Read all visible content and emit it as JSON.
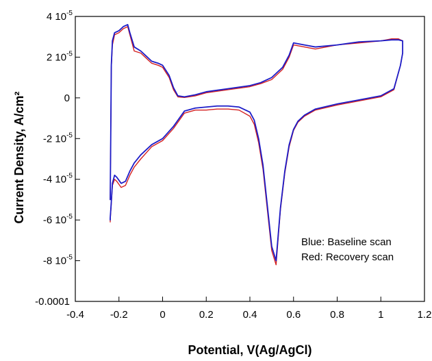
{
  "chart_data": {
    "type": "line",
    "title": "",
    "xlabel": "Potential, V(Ag/AgCl)",
    "ylabel": "Current Density, A/cm²",
    "xlim": [
      -0.4,
      1.2
    ],
    "ylim": [
      -0.0001,
      4e-05
    ],
    "grid": false,
    "x_ticks": [
      {
        "value": -0.4,
        "label": "-0.4"
      },
      {
        "value": -0.2,
        "label": "-0.2"
      },
      {
        "value": 0,
        "label": "0"
      },
      {
        "value": 0.2,
        "label": "0.2"
      },
      {
        "value": 0.4,
        "label": "0.4"
      },
      {
        "value": 0.6,
        "label": "0.6"
      },
      {
        "value": 0.8,
        "label": "0.8"
      },
      {
        "value": 1.0,
        "label": "1"
      },
      {
        "value": 1.2,
        "label": "1.2"
      }
    ],
    "y_ticks": [
      {
        "value": 4e-05,
        "label": "4 10",
        "exp": "-5"
      },
      {
        "value": 2e-05,
        "label": "2 10",
        "exp": "-5"
      },
      {
        "value": 0,
        "label": "0",
        "exp": ""
      },
      {
        "value": -2e-05,
        "label": "-2 10",
        "exp": "-5"
      },
      {
        "value": -4e-05,
        "label": "-4 10",
        "exp": "-5"
      },
      {
        "value": -6e-05,
        "label": "-6 10",
        "exp": "-5"
      },
      {
        "value": -8e-05,
        "label": "-8 10",
        "exp": "-5"
      },
      {
        "value": -0.0001,
        "label": "-0.0001",
        "exp": ""
      }
    ],
    "annotations": [
      "Blue: Baseline scan",
      "Red: Recovery scan"
    ],
    "series": [
      {
        "color": "#d42020",
        "x": [
          -0.24,
          -0.235,
          -0.23,
          -0.22,
          -0.2,
          -0.18,
          -0.16,
          -0.15,
          -0.13,
          -0.1,
          -0.08,
          -0.05,
          -0.02,
          0,
          0.03,
          0.05,
          0.07,
          0.1,
          0.15,
          0.2,
          0.3,
          0.4,
          0.45,
          0.5,
          0.55,
          0.58,
          0.6,
          0.65,
          0.7,
          0.8,
          0.9,
          1.0,
          1.05,
          1.08,
          1.1,
          1.1,
          1.09,
          1.06,
          1.0,
          0.9,
          0.8,
          0.7,
          0.65,
          0.62,
          0.6,
          0.58,
          0.56,
          0.54,
          0.52,
          0.5,
          0.48,
          0.46,
          0.44,
          0.42,
          0.4,
          0.35,
          0.3,
          0.25,
          0.2,
          0.15,
          0.1,
          0.05,
          0,
          -0.05,
          -0.1,
          -0.13,
          -0.15,
          -0.17,
          -0.19,
          -0.21,
          -0.22,
          -0.23,
          -0.235,
          -0.24,
          -0.24
        ],
        "y": [
          -5e-05,
          1.5e-05,
          2.6e-05,
          3.1e-05,
          3.2e-05,
          3.4e-05,
          3.5e-05,
          3.1e-05,
          2.3e-05,
          2.2e-05,
          2e-05,
          1.7e-05,
          1.6e-05,
          1.5e-05,
          1e-05,
          4e-06,
          5e-07,
          2e-07,
          1e-06,
          2.5e-06,
          4e-06,
          5.5e-06,
          7e-06,
          9e-06,
          1.4e-05,
          2e-05,
          2.6e-05,
          2.5e-05,
          2.4e-05,
          2.6e-05,
          2.7e-05,
          2.8e-05,
          2.9e-05,
          2.9e-05,
          2.8e-05,
          2.2e-05,
          1.6e-05,
          4e-06,
          5e-07,
          -1.5e-06,
          -3.5e-06,
          -6e-06,
          -9e-06,
          -1.2e-05,
          -1.6e-05,
          -2.4e-05,
          -3.7e-05,
          -5.5e-05,
          -8.2e-05,
          -7.5e-05,
          -5.5e-05,
          -3.5e-05,
          -2.2e-05,
          -1.3e-05,
          -9e-06,
          -6e-06,
          -5.5e-06,
          -5.5e-06,
          -6e-06,
          -6e-06,
          -7.5e-06,
          -1.5e-05,
          -2.1e-05,
          -2.4e-05,
          -3e-05,
          -3.4e-05,
          -3.8e-05,
          -4.3e-05,
          -4.4e-05,
          -4.1e-05,
          -4e-05,
          -4.3e-05,
          -5.2e-05,
          -6e-05,
          -6.1e-05
        ]
      },
      {
        "color": "#1c1cc8",
        "x": [
          -0.24,
          -0.235,
          -0.23,
          -0.22,
          -0.2,
          -0.18,
          -0.16,
          -0.15,
          -0.13,
          -0.1,
          -0.08,
          -0.05,
          -0.02,
          0,
          0.03,
          0.05,
          0.07,
          0.1,
          0.15,
          0.2,
          0.3,
          0.4,
          0.45,
          0.5,
          0.55,
          0.58,
          0.6,
          0.65,
          0.7,
          0.8,
          0.9,
          1.0,
          1.05,
          1.08,
          1.1,
          1.1,
          1.09,
          1.06,
          1.0,
          0.9,
          0.8,
          0.7,
          0.65,
          0.62,
          0.6,
          0.58,
          0.56,
          0.54,
          0.52,
          0.5,
          0.48,
          0.46,
          0.44,
          0.42,
          0.4,
          0.35,
          0.3,
          0.25,
          0.2,
          0.15,
          0.1,
          0.05,
          0,
          -0.05,
          -0.1,
          -0.13,
          -0.15,
          -0.17,
          -0.19,
          -0.21,
          -0.22,
          -0.23,
          -0.235,
          -0.24,
          -0.24
        ],
        "y": [
          -5e-05,
          1.6e-05,
          2.8e-05,
          3.2e-05,
          3.3e-05,
          3.5e-05,
          3.6e-05,
          3.2e-05,
          2.5e-05,
          2.3e-05,
          2.1e-05,
          1.8e-05,
          1.7e-05,
          1.6e-05,
          1.1e-05,
          5e-06,
          1e-06,
          5e-07,
          1.5e-06,
          3e-06,
          4.5e-06,
          6e-06,
          7.5e-06,
          1e-05,
          1.5e-05,
          2.1e-05,
          2.7e-05,
          2.6e-05,
          2.5e-05,
          2.6e-05,
          2.75e-05,
          2.8e-05,
          2.85e-05,
          2.85e-05,
          2.8e-05,
          2.2e-05,
          1.6e-05,
          4.5e-06,
          1e-06,
          -1e-06,
          -3e-06,
          -5.5e-06,
          -8.5e-06,
          -1.15e-05,
          -1.55e-05,
          -2.3e-05,
          -3.6e-05,
          -5.4e-05,
          -8e-05,
          -7.3e-05,
          -5.3e-05,
          -3.3e-05,
          -2e-05,
          -1.1e-05,
          -7e-06,
          -4.5e-06,
          -4e-06,
          -4e-06,
          -4.5e-06,
          -5e-06,
          -6.5e-06,
          -1.4e-05,
          -2e-05,
          -2.3e-05,
          -2.8e-05,
          -3.2e-05,
          -3.6e-05,
          -4.1e-05,
          -4.2e-05,
          -3.9e-05,
          -3.8e-05,
          -4.2e-05,
          -5.1e-05,
          -5.9e-05,
          -6e-05
        ]
      }
    ]
  }
}
